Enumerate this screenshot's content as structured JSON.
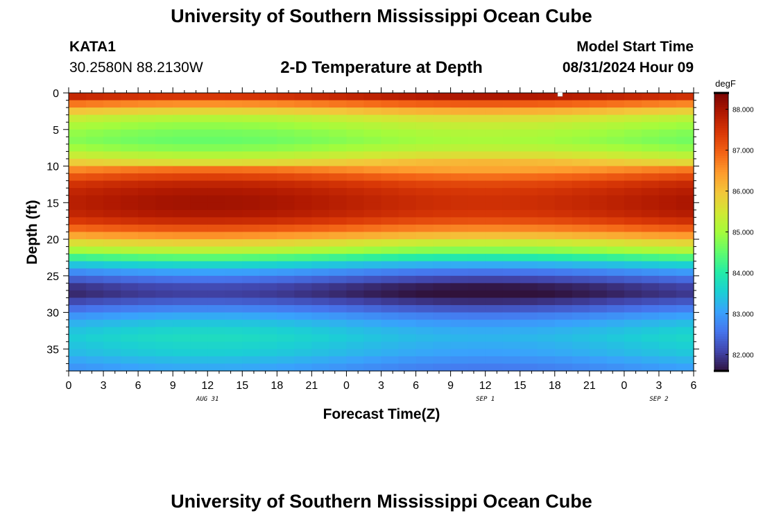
{
  "header": {
    "title": "University of Southern Mississippi Ocean Cube",
    "station": "KATA1",
    "coords": "30.2580N  88.2130W",
    "plot_title": "2-D Temperature at Depth",
    "model_start_label": "Model Start Time",
    "model_start_value": "08/31/2024 Hour 09"
  },
  "footer": {
    "title": "University of Southern Mississippi Ocean Cube"
  },
  "colorbar": {
    "unit": "degF",
    "min": 81.6,
    "max": 88.4,
    "ticks": [
      "82.000",
      "83.000",
      "84.000",
      "85.000",
      "86.000",
      "87.000",
      "88.000"
    ],
    "tick_values": [
      82,
      83,
      84,
      85,
      86,
      87,
      88
    ],
    "colormap": [
      "#30123b",
      "#4145ab",
      "#4675ed",
      "#39a2fc",
      "#1bcfd4",
      "#24eca6",
      "#61fc6c",
      "#a4fc3b",
      "#d1e834",
      "#f3c63a",
      "#fe9b2d",
      "#f36315",
      "#d93806",
      "#b11901",
      "#7a0402"
    ]
  },
  "chart_data": {
    "type": "heatmap",
    "title": "2-D Temperature at Depth",
    "xlabel": "Forecast Time(Z)",
    "ylabel": "Depth (ft)",
    "x_hours_since_start": [
      0,
      3,
      6,
      9,
      12,
      15,
      18,
      21,
      24,
      27,
      30,
      33,
      36,
      39,
      42,
      45,
      48,
      51,
      54
    ],
    "x_tick_labels": [
      "0",
      "3",
      "6",
      "9",
      "12",
      "15",
      "18",
      "21",
      "0",
      "3",
      "6",
      "9",
      "12",
      "15",
      "18",
      "21",
      "0",
      "3",
      "6"
    ],
    "date_labels": [
      {
        "label": "AUG 31",
        "hour": 12
      },
      {
        "label": "SEP 1",
        "hour": 36
      },
      {
        "label": "SEP 2",
        "hour": 51
      }
    ],
    "xlim": [
      0,
      54
    ],
    "ylim": [
      0,
      38
    ],
    "y_ticks": [
      0,
      5,
      10,
      15,
      20,
      25,
      30,
      35
    ],
    "depth_bands": [
      {
        "top": 0,
        "bottom": 1,
        "temp": 87.7
      },
      {
        "top": 1,
        "bottom": 2,
        "temp": 86.8
      },
      {
        "top": 2,
        "bottom": 3,
        "temp": 86.0
      },
      {
        "top": 3,
        "bottom": 4,
        "temp": 85.4
      },
      {
        "top": 4,
        "bottom": 5,
        "temp": 85.1
      },
      {
        "top": 5,
        "bottom": 6,
        "temp": 84.9
      },
      {
        "top": 6,
        "bottom": 7,
        "temp": 84.8
      },
      {
        "top": 7,
        "bottom": 8,
        "temp": 85.0
      },
      {
        "top": 8,
        "bottom": 9,
        "temp": 85.4
      },
      {
        "top": 9,
        "bottom": 10,
        "temp": 85.9
      },
      {
        "top": 10,
        "bottom": 11,
        "temp": 86.6
      },
      {
        "top": 11,
        "bottom": 12,
        "temp": 87.1
      },
      {
        "top": 12,
        "bottom": 13,
        "temp": 87.5
      },
      {
        "top": 13,
        "bottom": 14,
        "temp": 87.7
      },
      {
        "top": 14,
        "bottom": 15,
        "temp": 87.8
      },
      {
        "top": 15,
        "bottom": 16,
        "temp": 87.8
      },
      {
        "top": 16,
        "bottom": 17,
        "temp": 87.7
      },
      {
        "top": 17,
        "bottom": 18,
        "temp": 87.4
      },
      {
        "top": 18,
        "bottom": 19,
        "temp": 86.9
      },
      {
        "top": 19,
        "bottom": 20,
        "temp": 86.3
      },
      {
        "top": 20,
        "bottom": 21,
        "temp": 85.6
      },
      {
        "top": 21,
        "bottom": 22,
        "temp": 85.0
      },
      {
        "top": 22,
        "bottom": 23,
        "temp": 84.2
      },
      {
        "top": 23,
        "bottom": 24,
        "temp": 83.4
      },
      {
        "top": 24,
        "bottom": 25,
        "temp": 82.8
      },
      {
        "top": 25,
        "bottom": 26,
        "temp": 82.3
      },
      {
        "top": 26,
        "bottom": 27,
        "temp": 81.9
      },
      {
        "top": 27,
        "bottom": 28,
        "temp": 81.8
      },
      {
        "top": 28,
        "bottom": 29,
        "temp": 82.1
      },
      {
        "top": 29,
        "bottom": 30,
        "temp": 82.5
      },
      {
        "top": 30,
        "bottom": 31,
        "temp": 82.9
      },
      {
        "top": 31,
        "bottom": 32,
        "temp": 83.2
      },
      {
        "top": 32,
        "bottom": 33,
        "temp": 83.4
      },
      {
        "top": 33,
        "bottom": 34,
        "temp": 83.5
      },
      {
        "top": 34,
        "bottom": 35,
        "temp": 83.4
      },
      {
        "top": 35,
        "bottom": 36,
        "temp": 83.3
      },
      {
        "top": 36,
        "bottom": 37,
        "temp": 83.1
      },
      {
        "top": 37,
        "bottom": 38,
        "temp": 82.9
      }
    ]
  }
}
